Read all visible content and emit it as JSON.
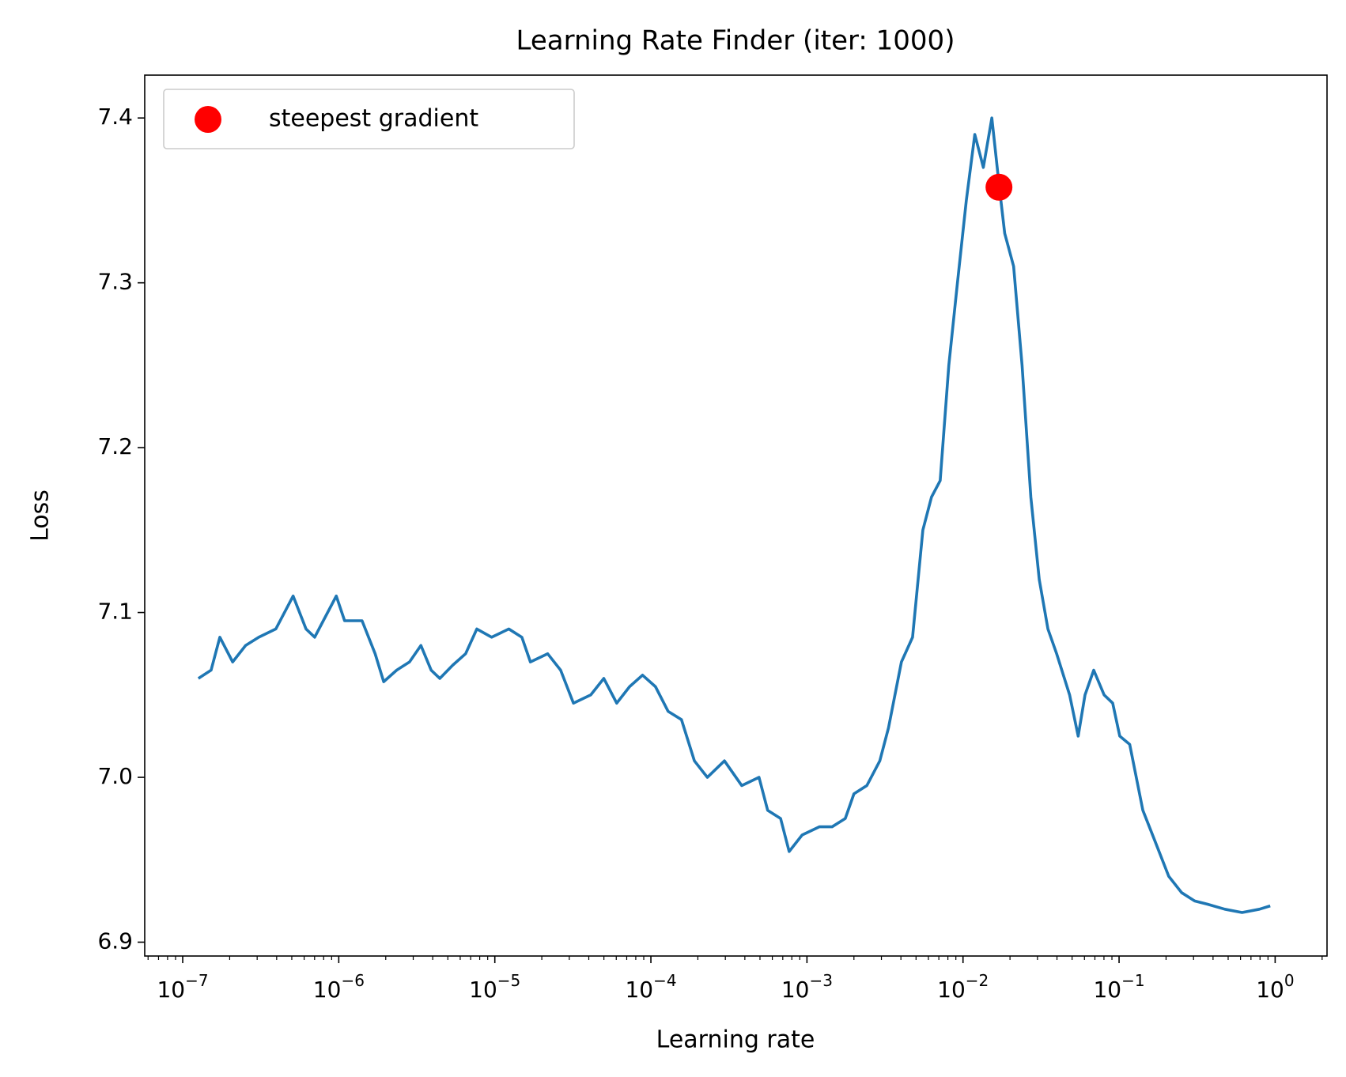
{
  "chart_data": {
    "type": "line",
    "title": "Learning Rate Finder (iter: 1000)",
    "x_label": "Learning rate",
    "y_label": "Loss",
    "x_scale": "log",
    "xlim": [
      5.71e-08,
      2.15
    ],
    "ylim": [
      6.8916,
      7.426
    ],
    "xticks": [
      {
        "value": 1e-07,
        "label": "10−7"
      },
      {
        "value": 1e-06,
        "label": "10−6"
      },
      {
        "value": 1e-05,
        "label": "10−5"
      },
      {
        "value": 0.0001,
        "label": "10−4"
      },
      {
        "value": 0.001,
        "label": "10−3"
      },
      {
        "value": 0.01,
        "label": "10−2"
      },
      {
        "value": 0.1,
        "label": "10−1"
      },
      {
        "value": 1,
        "label": "100"
      }
    ],
    "xminorticks": [
      6e-08,
      7e-08,
      8e-08,
      9e-08,
      2e-07,
      3e-07,
      4e-07,
      5e-07,
      6e-07,
      7e-07,
      8e-07,
      9e-07,
      2e-06,
      3e-06,
      4e-06,
      5e-06,
      6e-06,
      7e-06,
      8e-06,
      9e-06,
      2e-05,
      3e-05,
      4e-05,
      5e-05,
      6e-05,
      7e-05,
      8e-05,
      9e-05,
      0.0002,
      0.0003,
      0.0004,
      0.0005,
      0.0006,
      0.0007,
      0.0008,
      0.0009,
      0.002,
      0.003,
      0.004,
      0.005,
      0.006,
      0.007,
      0.008,
      0.009,
      0.02,
      0.03,
      0.04,
      0.05,
      0.06,
      0.07,
      0.08,
      0.09,
      0.2,
      0.3,
      0.4,
      0.5,
      0.6,
      0.7,
      0.8,
      0.9,
      2
    ],
    "yticks": [
      6.9,
      {
        "value": 7,
        "label": "7.0"
      },
      7.1,
      7.2,
      7.3,
      7.4
    ],
    "legend_position": "upper left",
    "x": [
      1.26e-07,
      1.52e-07,
      1.73e-07,
      2.09e-07,
      2.53e-07,
      3.07e-07,
      3.95e-07,
      5.1e-07,
      6.17e-07,
      7.01e-07,
      7.96e-07,
      9.64e-07,
      1.09e-06,
      1.41e-06,
      1.71e-06,
      1.94e-06,
      2.35e-06,
      2.84e-06,
      3.36e-06,
      3.91e-06,
      4.44e-06,
      5.37e-06,
      6.5e-06,
      7.67e-06,
      9.53e-06,
      1.23e-05,
      1.49e-05,
      1.69e-05,
      2.18e-05,
      2.64e-05,
      3.19e-05,
      4.12e-05,
      4.99e-05,
      6.04e-05,
      7.3e-05,
      8.84e-05,
      0.000107,
      0.000129,
      0.000157,
      0.00019,
      0.00023,
      0.000296,
      0.000382,
      0.000493,
      0.00056,
      0.000678,
      0.000769,
      0.000931,
      0.0012,
      0.00145,
      0.00176,
      0.002,
      0.00242,
      0.00293,
      0.00333,
      0.00403,
      0.00475,
      0.00553,
      0.00628,
      0.00714,
      0.00811,
      0.00921,
      0.0105,
      0.0119,
      0.0135,
      0.0153,
      0.017,
      0.0185,
      0.0211,
      0.0239,
      0.0272,
      0.0308,
      0.035,
      0.0398,
      0.0482,
      0.0547,
      0.0605,
      0.0688,
      0.0802,
      0.091,
      0.101,
      0.117,
      0.142,
      0.172,
      0.208,
      0.252,
      0.305,
      0.369,
      0.476,
      0.614,
      0.793,
      0.93
    ],
    "series": [
      {
        "name": "Loss",
        "color": "#1f77b4",
        "values": [
          7.06,
          7.065,
          7.085,
          7.07,
          7.08,
          7.085,
          7.09,
          7.11,
          7.09,
          7.085,
          7.095,
          7.11,
          7.095,
          7.095,
          7.075,
          7.058,
          7.065,
          7.07,
          7.08,
          7.065,
          7.06,
          7.068,
          7.075,
          7.09,
          7.085,
          7.09,
          7.085,
          7.07,
          7.075,
          7.065,
          7.045,
          7.05,
          7.06,
          7.045,
          7.055,
          7.062,
          7.055,
          7.04,
          7.035,
          7.01,
          7.0,
          7.01,
          6.995,
          7.0,
          6.98,
          6.975,
          6.955,
          6.965,
          6.97,
          6.97,
          6.975,
          6.99,
          6.995,
          7.01,
          7.03,
          7.07,
          7.085,
          7.15,
          7.17,
          7.18,
          7.25,
          7.3,
          7.35,
          7.39,
          7.37,
          7.4,
          7.36,
          7.33,
          7.31,
          7.25,
          7.17,
          7.12,
          7.09,
          7.075,
          7.05,
          7.025,
          7.05,
          7.065,
          7.05,
          7.045,
          7.025,
          7.02,
          6.98,
          6.96,
          6.94,
          6.93,
          6.925,
          6.923,
          6.92,
          6.918,
          6.92,
          6.922
        ]
      }
    ],
    "markers": [
      {
        "name": "steepest gradient",
        "color": "#ff0000",
        "x": [
          0.017
        ],
        "values": [
          7.358
        ]
      }
    ]
  }
}
